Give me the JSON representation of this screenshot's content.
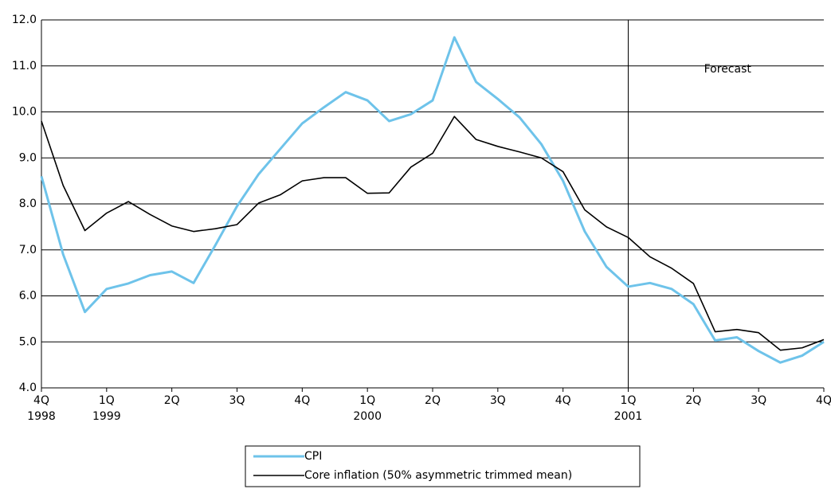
{
  "chart_data": {
    "type": "line",
    "categories": [
      "4Q",
      null,
      null,
      "1Q",
      null,
      null,
      "2Q",
      null,
      null,
      "3Q",
      null,
      null,
      "4Q",
      null,
      null,
      "1Q",
      null,
      null,
      "2Q",
      null,
      null,
      "3Q",
      null,
      null,
      "4Q",
      null,
      null,
      "1Q",
      null,
      null,
      "2Q",
      null,
      null,
      "3Q",
      null,
      null,
      "4Q"
    ],
    "category_years": [
      "1998",
      null,
      null,
      "1999",
      null,
      null,
      null,
      null,
      null,
      null,
      null,
      null,
      null,
      null,
      null,
      "2000",
      null,
      null,
      null,
      null,
      null,
      null,
      null,
      null,
      null,
      null,
      null,
      "2001",
      null,
      null,
      null,
      null,
      null,
      null,
      null,
      null,
      null
    ],
    "series": [
      {
        "name": "CPI",
        "color": "#6ec3ea",
        "values": [
          8.6,
          6.9,
          5.65,
          6.15,
          6.27,
          6.45,
          6.53,
          6.28,
          7.1,
          7.95,
          8.65,
          9.2,
          9.75,
          10.1,
          10.43,
          10.25,
          9.8,
          9.95,
          10.25,
          11.62,
          10.65,
          10.28,
          9.88,
          9.3,
          8.5,
          7.4,
          6.63,
          6.2,
          6.28,
          6.15,
          5.82,
          5.03,
          5.1,
          4.8,
          4.55,
          4.7,
          5.0
        ]
      },
      {
        "name": "Core inflation (50% asymmetric trimmed mean)",
        "color": "#000000",
        "values": [
          9.8,
          8.4,
          7.42,
          7.8,
          8.05,
          7.77,
          7.52,
          7.4,
          7.46,
          7.55,
          8.02,
          8.2,
          8.5,
          8.57,
          8.57,
          8.23,
          8.24,
          8.8,
          9.1,
          9.9,
          9.4,
          9.25,
          9.13,
          9.0,
          8.7,
          7.87,
          7.5,
          7.27,
          6.85,
          6.6,
          6.27,
          5.22,
          5.27,
          5.2,
          4.82,
          4.87,
          5.05
        ]
      }
    ],
    "ylim": [
      4,
      12
    ],
    "yticks": [
      {
        "value": 4,
        "label": "4.0"
      },
      {
        "value": 5,
        "label": "5.0"
      },
      {
        "value": 6,
        "label": "6.0"
      },
      {
        "value": 7,
        "label": "7.0"
      },
      {
        "value": 8,
        "label": "8.0"
      },
      {
        "value": 9,
        "label": "9.0"
      },
      {
        "value": 10,
        "label": "10.0"
      },
      {
        "value": 11,
        "label": "11.0"
      },
      {
        "value": 12,
        "label": "12.0"
      }
    ],
    "grid": true,
    "legend": "bottom",
    "annotation": {
      "text": "Forecast",
      "x": 27
    }
  }
}
